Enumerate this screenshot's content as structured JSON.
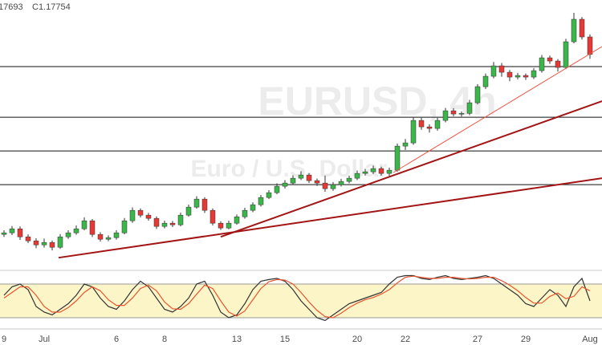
{
  "chart_data": {
    "type": "candlestick",
    "header": [
      "17693",
      "C1.17754"
    ],
    "watermark": [
      "EURUSD, 4h",
      "Euro / U.S. Dollar"
    ],
    "up_color": "#3cb54a",
    "down_color": "#e53935",
    "ylim": [
      1.1108,
      1.1945
    ],
    "categories": [
      "9",
      null,
      null,
      null,
      null,
      "Jul",
      null,
      null,
      null,
      null,
      null,
      null,
      null,
      null,
      "6",
      null,
      null,
      null,
      null,
      null,
      "8",
      null,
      null,
      null,
      null,
      null,
      null,
      null,
      null,
      "13",
      null,
      null,
      null,
      null,
      null,
      "15",
      null,
      null,
      null,
      null,
      null,
      null,
      null,
      null,
      "20",
      null,
      null,
      null,
      null,
      null,
      "22",
      null,
      null,
      null,
      null,
      null,
      null,
      null,
      null,
      "27",
      null,
      null,
      null,
      null,
      null,
      "29",
      null,
      null,
      null,
      null,
      null,
      null,
      null,
      "Aug"
    ],
    "candles": [
      [
        1.1215,
        1.1228,
        1.1207,
        1.122
      ],
      [
        1.122,
        1.1241,
        1.1213,
        1.12325
      ],
      [
        1.12325,
        1.124,
        1.1198,
        1.12075
      ],
      [
        1.12075,
        1.1215,
        1.1188,
        1.1195
      ],
      [
        1.1195,
        1.1203,
        1.1172,
        1.11825
      ],
      [
        1.11825,
        1.1202,
        1.1174,
        1.119
      ],
      [
        1.119,
        1.1196,
        1.1165,
        1.1175
      ],
      [
        1.1175,
        1.1216,
        1.117,
        1.12075
      ],
      [
        1.12075,
        1.1228,
        1.1201,
        1.122
      ],
      [
        1.122,
        1.1243,
        1.1214,
        1.12325
      ],
      [
        1.12325,
        1.1268,
        1.1228,
        1.12575
      ],
      [
        1.12575,
        1.1263,
        1.1207,
        1.1215
      ],
      [
        1.1215,
        1.1222,
        1.1193,
        1.12
      ],
      [
        1.12,
        1.1212,
        1.1194,
        1.1205
      ],
      [
        1.1205,
        1.1228,
        1.1199,
        1.122
      ],
      [
        1.122,
        1.1266,
        1.1215,
        1.12575
      ],
      [
        1.12575,
        1.1299,
        1.1251,
        1.129
      ],
      [
        1.129,
        1.1296,
        1.1268,
        1.1275
      ],
      [
        1.1275,
        1.1282,
        1.1258,
        1.1265
      ],
      [
        1.1265,
        1.1271,
        1.1232,
        1.124
      ],
      [
        1.124,
        1.1258,
        1.1234,
        1.125
      ],
      [
        1.125,
        1.1257,
        1.1238,
        1.1245
      ],
      [
        1.1245,
        1.1283,
        1.124,
        1.1275
      ],
      [
        1.1275,
        1.1308,
        1.127,
        1.13
      ],
      [
        1.13,
        1.1334,
        1.1295,
        1.1325
      ],
      [
        1.1325,
        1.1331,
        1.1282,
        1.129
      ],
      [
        1.129,
        1.1296,
        1.1243,
        1.125
      ],
      [
        1.125,
        1.1256,
        1.1229,
        1.1235
      ],
      [
        1.1235,
        1.1258,
        1.1231,
        1.125
      ],
      [
        1.125,
        1.1277,
        1.1245,
        1.127
      ],
      [
        1.127,
        1.1298,
        1.1264,
        1.129
      ],
      [
        1.129,
        1.1315,
        1.1284,
        1.13075
      ],
      [
        1.13075,
        1.1338,
        1.1302,
        1.133
      ],
      [
        1.133,
        1.1353,
        1.1325,
        1.1345
      ],
      [
        1.1345,
        1.1374,
        1.134,
        1.1365
      ],
      [
        1.1365,
        1.1384,
        1.1358,
        1.1375
      ],
      [
        1.1375,
        1.1399,
        1.1369,
        1.139
      ],
      [
        1.139,
        1.1412,
        1.1384,
        1.14
      ],
      [
        1.14,
        1.1406,
        1.1375,
        1.13825
      ],
      [
        1.13825,
        1.1389,
        1.1366,
        1.1375
      ],
      [
        1.1375,
        1.1398,
        1.1348,
        1.13575
      ],
      [
        1.13575,
        1.1378,
        1.1351,
        1.137
      ],
      [
        1.137,
        1.1388,
        1.1364,
        1.138
      ],
      [
        1.138,
        1.1398,
        1.1374,
        1.139
      ],
      [
        1.139,
        1.1414,
        1.1384,
        1.1405
      ],
      [
        1.1405,
        1.1419,
        1.1398,
        1.141
      ],
      [
        1.141,
        1.1429,
        1.1403,
        1.142
      ],
      [
        1.142,
        1.1426,
        1.1398,
        1.1405
      ],
      [
        1.1405,
        1.1423,
        1.1397,
        1.1415
      ],
      [
        1.1415,
        1.1498,
        1.141,
        1.149
      ],
      [
        1.149,
        1.1512,
        1.1478,
        1.15
      ],
      [
        1.15,
        1.158,
        1.1494,
        1.157
      ],
      [
        1.157,
        1.1578,
        1.1541,
        1.155
      ],
      [
        1.155,
        1.1558,
        1.1532,
        1.1545
      ],
      [
        1.1545,
        1.1578,
        1.1538,
        1.157
      ],
      [
        1.157,
        1.1609,
        1.1564,
        1.16
      ],
      [
        1.16,
        1.1608,
        1.1583,
        1.159
      ],
      [
        1.159,
        1.1598,
        1.1582,
        1.1592
      ],
      [
        1.1592,
        1.1634,
        1.1586,
        1.1625
      ],
      [
        1.1625,
        1.1683,
        1.162,
        1.1675
      ],
      [
        1.1675,
        1.1716,
        1.1668,
        1.17075
      ],
      [
        1.17075,
        1.1752,
        1.1701,
        1.174
      ],
      [
        1.174,
        1.1749,
        1.1706,
        1.172
      ],
      [
        1.172,
        1.1727,
        1.1692,
        1.1705
      ],
      [
        1.1705,
        1.1718,
        1.1698,
        1.171
      ],
      [
        1.171,
        1.1716,
        1.1696,
        1.1705
      ],
      [
        1.1705,
        1.1733,
        1.1699,
        1.1725
      ],
      [
        1.1725,
        1.1774,
        1.1719,
        1.1765
      ],
      [
        1.1765,
        1.1772,
        1.1746,
        1.1755
      ],
      [
        1.1755,
        1.1761,
        1.1722,
        1.1735
      ],
      [
        1.1735,
        1.1824,
        1.173,
        1.1815
      ],
      [
        1.1815,
        1.1905,
        1.181,
        1.1885
      ],
      [
        1.1885,
        1.1892,
        1.1822,
        1.183
      ],
      [
        1.183,
        1.1838,
        1.1762,
        1.17754
      ]
    ],
    "levels": [
      1.17375,
      1.158,
      1.1475,
      1.137
    ],
    "level_color": "#111111",
    "trendlines": [
      {
        "x": [
          6.8,
          74.5
        ],
        "y": [
          1.11425,
          1.139
        ],
        "color": "#a31515"
      },
      {
        "x": [
          27,
          74.5
        ],
        "y": [
          1.12075,
          1.163
        ],
        "color": "#a31515"
      },
      {
        "x": [
          48.5,
          74.5
        ],
        "y": [
          1.14075,
          1.18
        ],
        "color": "#f0584a"
      }
    ],
    "stochastic": {
      "ylim": [
        0,
        100
      ],
      "band": [
        20,
        80
      ],
      "band_color": "#fbf5c8",
      "series": [
        {
          "color": "#333333",
          "values": [
            60,
            75,
            80,
            70,
            40,
            30,
            25,
            35,
            45,
            60,
            80,
            75,
            55,
            40,
            35,
            50,
            70,
            85,
            75,
            55,
            35,
            30,
            40,
            55,
            80,
            85,
            60,
            30,
            20,
            25,
            45,
            70,
            85,
            88,
            90,
            85,
            70,
            50,
            35,
            20,
            15,
            25,
            35,
            45,
            50,
            55,
            60,
            65,
            80,
            92,
            95,
            95,
            90,
            88,
            92,
            95,
            90,
            88,
            90,
            92,
            95,
            90,
            80,
            70,
            60,
            45,
            40,
            55,
            70,
            60,
            40,
            75,
            90,
            50
          ]
        },
        {
          "color": "#e8552f",
          "values": [
            55,
            65,
            75,
            75,
            60,
            40,
            30,
            30,
            38,
            50,
            65,
            75,
            68,
            52,
            42,
            42,
            55,
            72,
            78,
            68,
            48,
            36,
            35,
            45,
            62,
            78,
            72,
            50,
            30,
            23,
            32,
            52,
            72,
            84,
            88,
            87,
            80,
            65,
            48,
            33,
            22,
            20,
            28,
            38,
            46,
            52,
            56,
            62,
            70,
            82,
            92,
            94,
            92,
            90,
            90,
            92,
            92,
            90,
            89,
            90,
            92,
            92,
            86,
            78,
            68,
            56,
            46,
            46,
            58,
            64,
            54,
            58,
            75,
            68
          ]
        }
      ]
    }
  }
}
